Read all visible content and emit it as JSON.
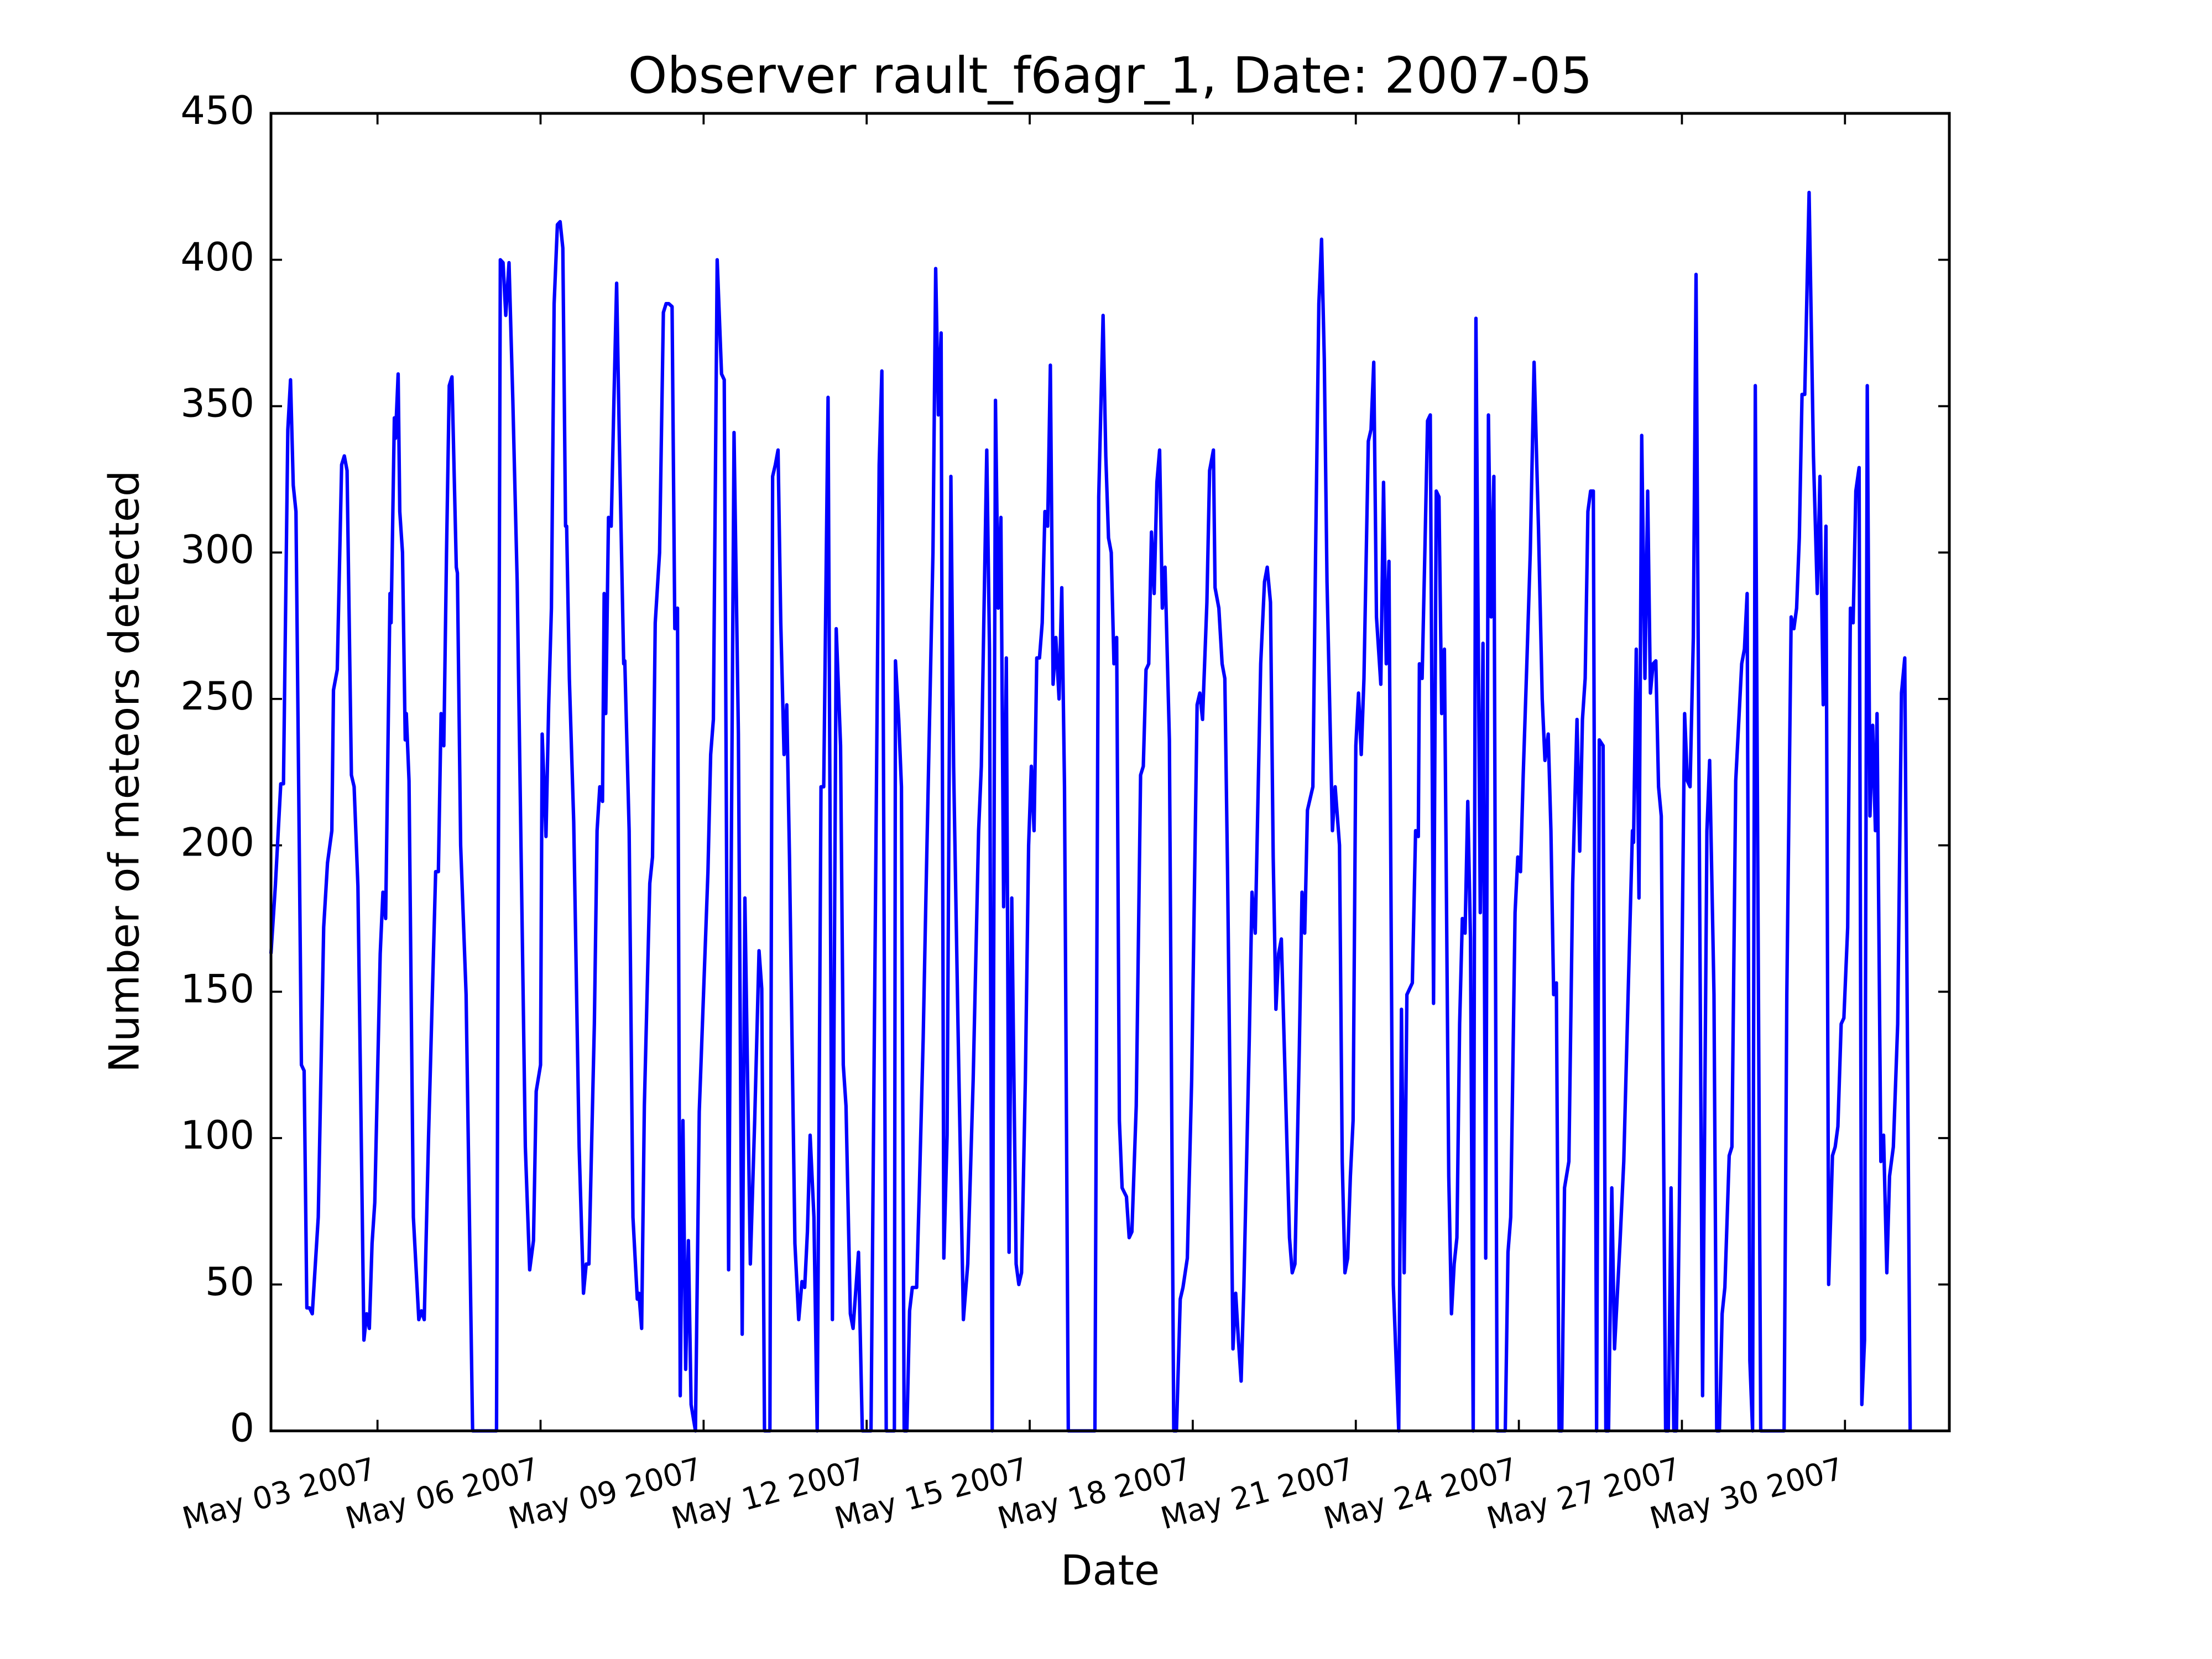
{
  "chart_data": {
    "type": "line",
    "title": "Observer rault_f6agr_1, Date: 2007-05",
    "x_label": "Date",
    "y_label": "Number of meteors detected",
    "color": "#0000ff",
    "xlim": [
      1.04,
      31.92
    ],
    "ylim": [
      0,
      450
    ],
    "yticks": [
      0,
      50,
      100,
      150,
      200,
      250,
      300,
      350,
      400,
      450
    ],
    "xticks": [
      {
        "value": 3,
        "label": "May 03 2007"
      },
      {
        "value": 6,
        "label": "May 06 2007"
      },
      {
        "value": 9,
        "label": "May 09 2007"
      },
      {
        "value": 12,
        "label": "May 12 2007"
      },
      {
        "value": 15,
        "label": "May 15 2007"
      },
      {
        "value": 18,
        "label": "May 18 2007"
      },
      {
        "value": 21,
        "label": "May 21 2007"
      },
      {
        "value": 24,
        "label": "May 24 2007"
      },
      {
        "value": 27,
        "label": "May 27 2007"
      },
      {
        "value": 30,
        "label": "May 30 2007"
      }
    ],
    "x": [
      1.04,
      1.12,
      1.22,
      1.27,
      1.35,
      1.4,
      1.45,
      1.5,
      1.6,
      1.65,
      1.7,
      1.75,
      1.8,
      1.91,
      2.01,
      2.08,
      2.16,
      2.19,
      2.26,
      2.34,
      2.39,
      2.44,
      2.52,
      2.57,
      2.64,
      2.75,
      2.8,
      2.85,
      2.9,
      2.95,
      3.05,
      3.1,
      3.15,
      3.23,
      3.25,
      3.31,
      3.33,
      3.38,
      3.41,
      3.46,
      3.51,
      3.53,
      3.58,
      3.66,
      3.76,
      3.81,
      3.86,
      3.94,
      4.07,
      4.12,
      4.17,
      4.22,
      4.27,
      4.32,
      4.37,
      4.45,
      4.47,
      4.53,
      4.63,
      4.75,
      5.19,
      5.26,
      5.31,
      5.36,
      5.42,
      5.49,
      5.57,
      5.72,
      5.8,
      5.87,
      5.92,
      6.0,
      6.03,
      6.1,
      6.15,
      6.2,
      6.25,
      6.31,
      6.36,
      6.41,
      6.46,
      6.48,
      6.53,
      6.61,
      6.71,
      6.79,
      6.84,
      6.89,
      6.99,
      7.04,
      7.09,
      7.14,
      7.17,
      7.2,
      7.25,
      7.3,
      7.35,
      7.4,
      7.45,
      7.53,
      7.55,
      7.63,
      7.7,
      7.78,
      7.81,
      7.86,
      7.91,
      8.01,
      8.06,
      8.11,
      8.19,
      8.26,
      8.31,
      8.36,
      8.42,
      8.47,
      8.52,
      8.57,
      8.62,
      8.67,
      8.72,
      8.77,
      8.85,
      8.92,
      9.08,
      9.13,
      9.18,
      9.25,
      9.33,
      9.38,
      9.46,
      9.56,
      9.64,
      9.71,
      9.76,
      9.86,
      9.94,
      10.02,
      10.07,
      10.12,
      10.22,
      10.27,
      10.32,
      10.37,
      10.42,
      10.48,
      10.53,
      10.58,
      10.68,
      10.75,
      10.81,
      10.86,
      10.91,
      10.96,
      11.03,
      11.09,
      11.16,
      11.21,
      11.29,
      11.37,
      11.44,
      11.52,
      11.57,
      11.62,
      11.7,
      11.75,
      11.85,
      11.92,
      12.08,
      12.23,
      12.28,
      12.36,
      12.51,
      12.53,
      12.59,
      12.64,
      12.69,
      12.74,
      12.79,
      12.84,
      12.92,
      12.97,
      13.04,
      13.09,
      13.22,
      13.27,
      13.32,
      13.37,
      13.42,
      13.48,
      13.55,
      13.6,
      13.68,
      13.78,
      13.86,
      13.96,
      14.06,
      14.11,
      14.21,
      14.26,
      14.31,
      14.37,
      14.42,
      14.47,
      14.52,
      14.57,
      14.62,
      14.67,
      14.75,
      14.8,
      14.85,
      14.92,
      14.98,
      15.03,
      15.08,
      15.13,
      15.18,
      15.23,
      15.28,
      15.33,
      15.38,
      15.43,
      15.48,
      15.54,
      15.59,
      15.64,
      15.71,
      16.2,
      16.27,
      16.35,
      16.4,
      16.45,
      16.5,
      16.55,
      16.6,
      16.65,
      16.7,
      16.78,
      16.83,
      16.88,
      16.96,
      17.04,
      17.09,
      17.14,
      17.19,
      17.24,
      17.29,
      17.34,
      17.39,
      17.44,
      17.49,
      17.57,
      17.65,
      17.7,
      17.77,
      17.82,
      17.9,
      17.98,
      18.08,
      18.13,
      18.18,
      18.26,
      18.31,
      18.38,
      18.41,
      18.48,
      18.54,
      18.59,
      18.64,
      18.74,
      18.79,
      18.84,
      18.89,
      18.94,
      19.04,
      19.09,
      19.15,
      19.25,
      19.32,
      19.37,
      19.43,
      19.48,
      19.53,
      19.58,
      19.63,
      19.78,
      19.83,
      19.88,
      19.96,
      20.01,
      20.06,
      20.11,
      20.21,
      20.26,
      20.32,
      20.37,
      20.42,
      20.47,
      20.57,
      20.62,
      20.7,
      20.75,
      20.8,
      20.85,
      20.9,
      20.95,
      21.0,
      21.05,
      21.1,
      21.15,
      21.23,
      21.28,
      21.33,
      21.38,
      21.46,
      21.51,
      21.56,
      21.61,
      21.69,
      21.79,
      21.84,
      21.89,
      21.94,
      22.04,
      22.1,
      22.15,
      22.17,
      22.22,
      22.27,
      22.32,
      22.37,
      22.43,
      22.48,
      22.53,
      22.58,
      22.63,
      22.71,
      22.76,
      22.81,
      22.86,
      22.91,
      22.96,
      23.01,
      23.06,
      23.11,
      23.16,
      23.21,
      23.29,
      23.34,
      23.39,
      23.44,
      23.49,
      23.54,
      23.6,
      23.75,
      23.8,
      23.85,
      23.93,
      23.98,
      24.03,
      24.08,
      24.15,
      24.21,
      24.28,
      24.36,
      24.43,
      24.48,
      24.54,
      24.59,
      24.64,
      24.69,
      24.74,
      24.79,
      24.84,
      24.92,
      24.99,
      25.07,
      25.12,
      25.17,
      25.22,
      25.27,
      25.32,
      25.37,
      25.43,
      25.48,
      25.55,
      25.6,
      25.65,
      25.71,
      25.76,
      25.86,
      25.93,
      26.01,
      26.09,
      26.11,
      26.16,
      26.21,
      26.26,
      26.32,
      26.37,
      26.42,
      26.47,
      26.52,
      26.57,
      26.62,
      26.7,
      26.75,
      26.8,
      26.85,
      26.9,
      26.95,
      27.05,
      27.1,
      27.15,
      27.21,
      27.26,
      27.38,
      27.46,
      27.51,
      27.59,
      27.64,
      27.69,
      27.74,
      27.79,
      27.87,
      27.92,
      27.99,
      28.1,
      28.15,
      28.2,
      28.25,
      28.3,
      28.35,
      28.45,
      28.88,
      28.93,
      29.01,
      29.06,
      29.11,
      29.16,
      29.21,
      29.26,
      29.34,
      29.42,
      29.49,
      29.54,
      29.6,
      29.65,
      29.7,
      29.77,
      29.82,
      29.87,
      29.93,
      29.98,
      30.05,
      30.1,
      30.15,
      30.2,
      30.26,
      30.31,
      30.36,
      30.41,
      30.46,
      30.51,
      30.56,
      30.59,
      30.66,
      30.71,
      30.77,
      30.82,
      30.89,
      30.97,
      31.04,
      31.1,
      31.2
    ],
    "values": [
      163,
      186,
      221,
      221,
      342,
      359,
      323,
      314,
      125,
      123,
      42,
      42,
      40,
      73,
      172,
      194,
      205,
      253,
      260,
      330,
      333,
      328,
      224,
      220,
      186,
      31,
      40,
      35,
      64,
      78,
      163,
      184,
      175,
      286,
      276,
      346,
      339,
      361,
      314,
      300,
      236,
      245,
      222,
      73,
      38,
      41,
      38,
      101,
      191,
      191,
      245,
      234,
      300,
      357,
      360,
      295,
      293,
      200,
      149,
      0,
      0,
      400,
      399,
      381,
      399,
      352,
      290,
      97,
      55,
      65,
      116,
      125,
      238,
      203,
      248,
      281,
      385,
      412,
      413,
      404,
      309,
      309,
      257,
      208,
      97,
      47,
      57,
      57,
      139,
      205,
      220,
      215,
      286,
      245,
      312,
      309,
      352,
      392,
      338,
      262,
      263,
      205,
      73,
      45,
      47,
      35,
      111,
      187,
      196,
      276,
      300,
      382,
      385,
      385,
      384,
      274,
      281,
      12,
      106,
      21,
      65,
      9,
      0,
      109,
      191,
      231,
      243,
      400,
      361,
      359,
      55,
      341,
      238,
      33,
      182,
      57,
      106,
      164,
      151,
      0,
      0,
      326,
      330,
      335,
      276,
      231,
      248,
      196,
      64,
      38,
      51,
      49,
      68,
      101,
      73,
      0,
      220,
      220,
      353,
      38,
      274,
      234,
      125,
      111,
      40,
      35,
      61,
      0,
      0,
      330,
      362,
      0,
      0,
      263,
      243,
      220,
      0,
      0,
      41,
      49,
      49,
      83,
      134,
      182,
      300,
      397,
      347,
      375,
      59,
      101,
      326,
      227,
      139,
      38,
      57,
      120,
      205,
      227,
      335,
      267,
      0,
      352,
      281,
      312,
      179,
      264,
      61,
      182,
      57,
      50,
      54,
      120,
      200,
      227,
      205,
      264,
      264,
      276,
      314,
      309,
      364,
      255,
      271,
      250,
      288,
      220,
      0,
      0,
      319,
      381,
      333,
      305,
      300,
      262,
      271,
      106,
      83,
      80,
      66,
      68,
      111,
      224,
      227,
      260,
      262,
      307,
      286,
      324,
      335,
      281,
      295,
      236,
      0,
      0,
      45,
      49,
      59,
      120,
      248,
      252,
      243,
      283,
      328,
      335,
      288,
      281,
      262,
      257,
      191,
      28,
      47,
      31,
      17,
      49,
      134,
      184,
      170,
      262,
      290,
      295,
      283,
      196,
      144,
      163,
      168,
      66,
      54,
      57,
      130,
      184,
      170,
      212,
      220,
      300,
      385,
      407,
      366,
      290,
      205,
      220,
      200,
      92,
      54,
      59,
      87,
      106,
      234,
      252,
      231,
      257,
      338,
      342,
      365,
      278,
      255,
      324,
      262,
      297,
      50,
      0,
      144,
      54,
      149,
      153,
      205,
      203,
      262,
      257,
      300,
      345,
      347,
      146,
      321,
      319,
      245,
      267,
      87,
      40,
      57,
      66,
      139,
      175,
      170,
      215,
      168,
      0,
      380,
      177,
      269,
      59,
      347,
      278,
      326,
      0,
      0,
      61,
      73,
      177,
      196,
      191,
      224,
      264,
      300,
      365,
      309,
      250,
      229,
      238,
      205,
      149,
      153,
      0,
      0,
      83,
      92,
      187,
      243,
      198,
      243,
      257,
      314,
      321,
      321,
      0,
      236,
      234,
      0,
      0,
      83,
      28,
      64,
      92,
      149,
      205,
      201,
      267,
      182,
      340,
      257,
      321,
      252,
      262,
      263,
      220,
      210,
      0,
      0,
      83,
      0,
      0,
      73,
      245,
      222,
      220,
      271,
      395,
      12,
      205,
      229,
      149,
      0,
      0,
      40,
      49,
      94,
      97,
      222,
      262,
      267,
      286,
      24,
      0,
      357,
      0,
      0,
      149,
      278,
      274,
      281,
      305,
      354,
      354,
      423,
      333,
      286,
      326,
      248,
      309,
      50,
      94,
      97,
      104,
      139,
      141,
      172,
      281,
      276,
      321,
      329,
      9,
      31,
      357,
      210,
      241,
      205,
      245,
      92,
      101,
      54,
      87,
      97,
      139,
      252,
      264,
      0
    ]
  }
}
